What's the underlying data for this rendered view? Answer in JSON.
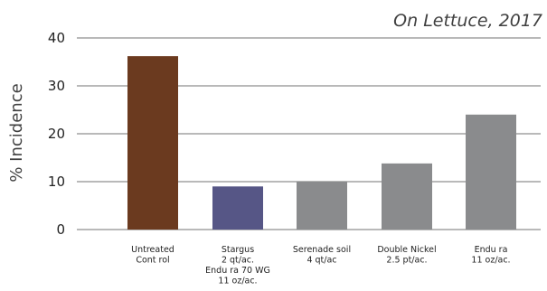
{
  "chart_data": {
    "type": "bar",
    "title": "On Lettuce, 2017",
    "xlabel": "",
    "ylabel": "% Incidence",
    "ylim": [
      0,
      40
    ],
    "yticks": [
      0,
      10,
      20,
      30,
      40
    ],
    "grid": true,
    "categories": [
      [
        "Untreated",
        "Cont rol"
      ],
      [
        "Stargus",
        "2 qt/ac.",
        "Endu ra  70 WG",
        "11 oz/ac."
      ],
      [
        "Serenade soil",
        "4 qt/ac"
      ],
      [
        "Double  Nickel",
        "2.5 pt/ac."
      ],
      [
        "Endu ra",
        "11 oz/ac."
      ]
    ],
    "values": [
      36.2,
      9,
      10,
      13.8,
      24
    ],
    "colors": [
      "#6b3a1f",
      "#565686",
      "#8a8b8d",
      "#8a8b8d",
      "#8a8b8d"
    ]
  }
}
